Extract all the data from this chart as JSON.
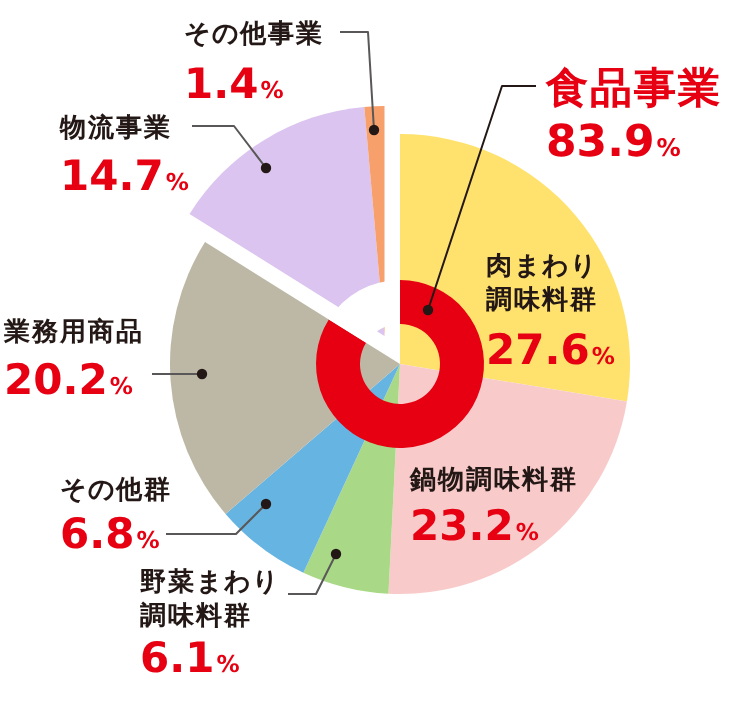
{
  "chart_data": [
    {
      "type": "pie",
      "categories": [
        "肉まわり調味料群",
        "鍋物調味料群",
        "野菜まわり調味料群",
        "その他群",
        "業務用商品",
        "物流事業",
        "その他事業"
      ],
      "values": [
        27.6,
        23.2,
        6.1,
        6.8,
        20.2,
        14.7,
        1.4
      ],
      "colors": [
        "#ffe26e",
        "#f8cbca",
        "#a9d986",
        "#66b4e1",
        "#bdb8a6",
        "#dbc4ef",
        "#f7a06c"
      ],
      "value_labels": [
        "27.6%",
        "23.2%",
        "6.1%",
        "6.8%",
        "20.2%",
        "14.7%",
        "1.4%"
      ]
    },
    {
      "type": "donut",
      "categories": [
        "食品事業",
        null
      ],
      "values": [
        83.9,
        16.1
      ],
      "colors": [
        "#e60012",
        "#ffffff"
      ],
      "value_labels": [
        "83.9%",
        null
      ]
    }
  ]
}
